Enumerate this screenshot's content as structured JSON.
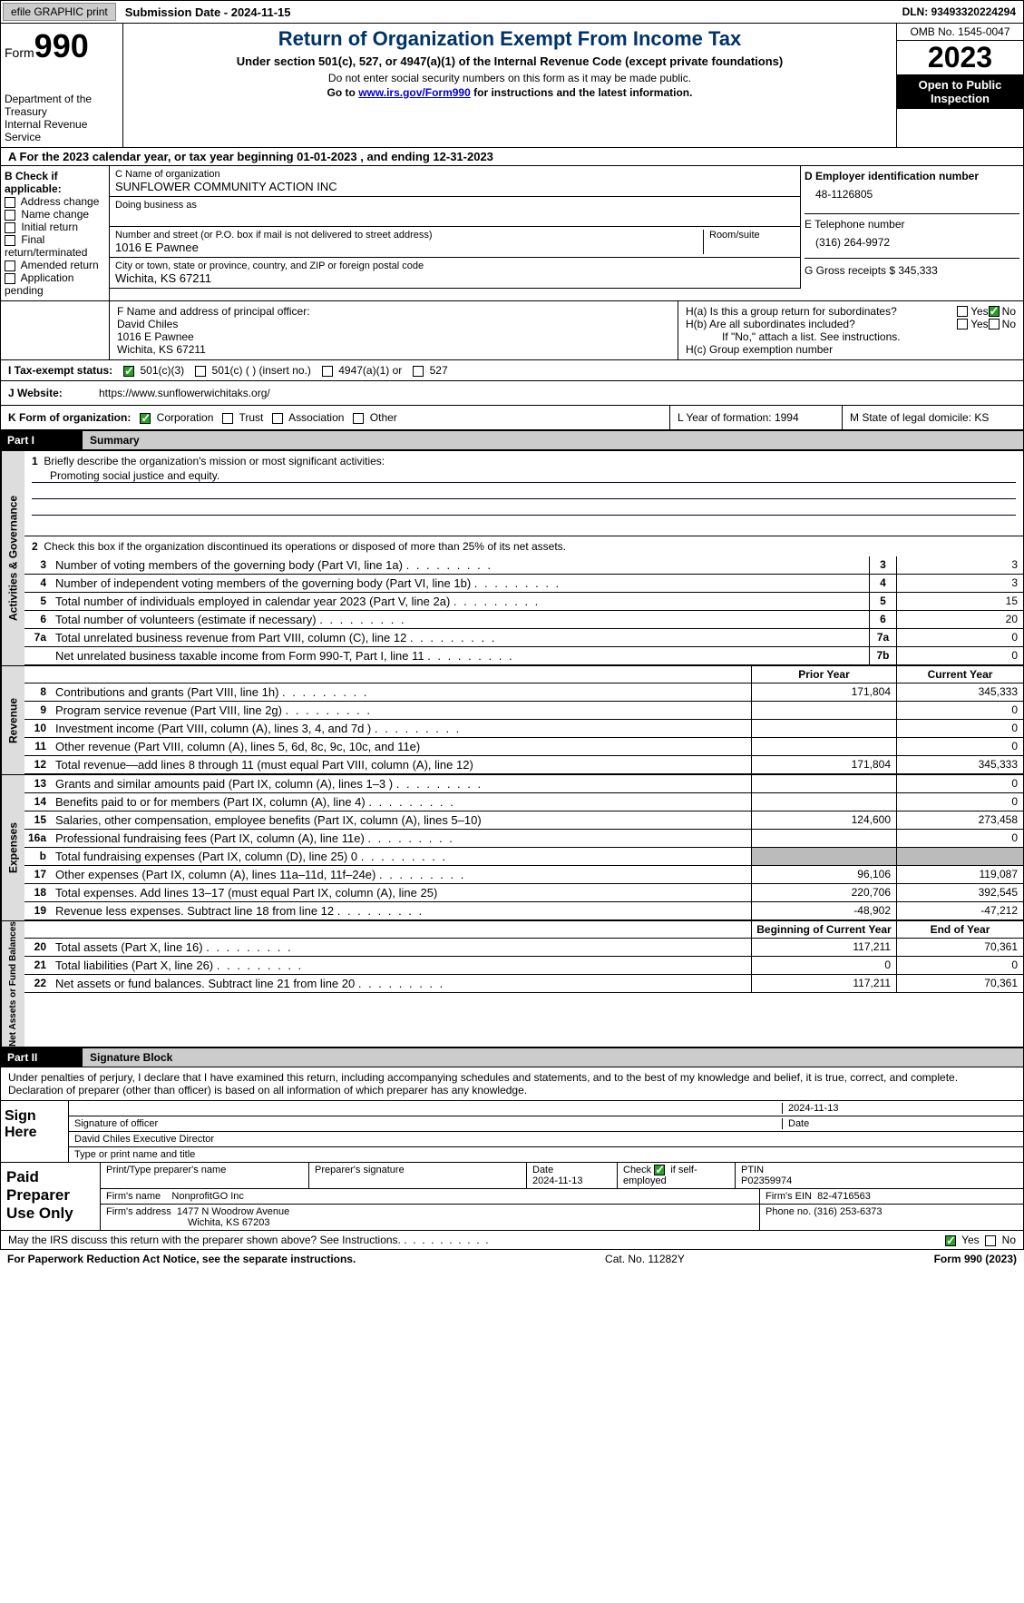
{
  "topbar": {
    "efile": "efile GRAPHIC print",
    "submission": "Submission Date - 2024-11-15",
    "dln": "DLN: 93493320224294"
  },
  "header": {
    "form_word": "Form",
    "form_num": "990",
    "dept": "Department of the Treasury",
    "irs": "Internal Revenue Service",
    "title": "Return of Organization Exempt From Income Tax",
    "sub1": "Under section 501(c), 527, or 4947(a)(1) of the Internal Revenue Code (except private foundations)",
    "sub2": "Do not enter social security numbers on this form as it may be made public.",
    "sub3_pre": "Go to ",
    "sub3_link": "www.irs.gov/Form990",
    "sub3_post": " for instructions and the latest information.",
    "omb": "OMB No. 1545-0047",
    "year": "2023",
    "open": "Open to Public Inspection"
  },
  "section_a": "A For the 2023 calendar year, or tax year beginning 01-01-2023   , and ending 12-31-2023",
  "box_b": {
    "hdr": "B Check if applicable:",
    "items": [
      "Address change",
      "Name change",
      "Initial return",
      "Final return/terminated",
      "Amended return",
      "Application pending"
    ]
  },
  "box_c": {
    "name_lbl": "C Name of organization",
    "name": "SUNFLOWER COMMUNITY ACTION INC",
    "dba_lbl": "Doing business as",
    "addr_lbl": "Number and street (or P.O. box if mail is not delivered to street address)",
    "room_lbl": "Room/suite",
    "addr": "1016 E Pawnee",
    "city_lbl": "City or town, state or province, country, and ZIP or foreign postal code",
    "city": "Wichita, KS  67211"
  },
  "box_d": {
    "ein_lbl": "D Employer identification number",
    "ein": "48-1126805",
    "tel_lbl": "E Telephone number",
    "tel": "(316) 264-9972",
    "gross_lbl": "G Gross receipts $ 345,333"
  },
  "box_f": {
    "lbl": "F  Name and address of principal officer:",
    "name": "David Chiles",
    "addr1": "1016 E Pawnee",
    "addr2": "Wichita, KS  67211"
  },
  "box_h": {
    "ha": "H(a)  Is this a group return for subordinates?",
    "hb": "H(b)  Are all subordinates included?",
    "hb_note": "If \"No,\" attach a list. See instructions.",
    "hc": "H(c)  Group exemption number",
    "yes": "Yes",
    "no": "No"
  },
  "row_i": {
    "lbl": "I   Tax-exempt status:",
    "o1": "501(c)(3)",
    "o2": "501(c) (  ) (insert no.)",
    "o3": "4947(a)(1) or",
    "o4": "527"
  },
  "row_j": {
    "lbl": "J   Website:",
    "val": "https://www.sunflowerwichitaks.org/"
  },
  "row_k": {
    "lbl": "K Form of organization:",
    "o1": "Corporation",
    "o2": "Trust",
    "o3": "Association",
    "o4": "Other",
    "l_lbl": "L Year of formation: 1994",
    "m_lbl": "M State of legal domicile: KS"
  },
  "part1": {
    "num": "Part I",
    "title": "Summary"
  },
  "vtabs": {
    "gov": "Activities & Governance",
    "rev": "Revenue",
    "exp": "Expenses",
    "net": "Net Assets or Fund Balances"
  },
  "summary": {
    "q1": "Briefly describe the organization's mission or most significant activities:",
    "q1a": "Promoting social justice and equity.",
    "q2": "Check this box      if the organization discontinued its operations or disposed of more than 25% of its net assets.",
    "rows_gov": [
      {
        "n": "3",
        "d": "Number of voting members of the governing body (Part VI, line 1a)",
        "box": "3",
        "v": "3"
      },
      {
        "n": "4",
        "d": "Number of independent voting members of the governing body (Part VI, line 1b)",
        "box": "4",
        "v": "3"
      },
      {
        "n": "5",
        "d": "Total number of individuals employed in calendar year 2023 (Part V, line 2a)",
        "box": "5",
        "v": "15"
      },
      {
        "n": "6",
        "d": "Total number of volunteers (estimate if necessary)",
        "box": "6",
        "v": "20"
      },
      {
        "n": "7a",
        "d": "Total unrelated business revenue from Part VIII, column (C), line 12",
        "box": "7a",
        "v": "0"
      },
      {
        "n": "",
        "d": "Net unrelated business taxable income from Form 990-T, Part I, line 11",
        "box": "7b",
        "v": "0"
      }
    ],
    "hdr_prior": "Prior Year",
    "hdr_curr": "Current Year",
    "rows_rev": [
      {
        "n": "8",
        "d": "Contributions and grants (Part VIII, line 1h)",
        "p": "171,804",
        "c": "345,333"
      },
      {
        "n": "9",
        "d": "Program service revenue (Part VIII, line 2g)",
        "p": "",
        "c": "0"
      },
      {
        "n": "10",
        "d": "Investment income (Part VIII, column (A), lines 3, 4, and 7d )",
        "p": "",
        "c": "0"
      },
      {
        "n": "11",
        "d": "Other revenue (Part VIII, column (A), lines 5, 6d, 8c, 9c, 10c, and 11e)",
        "p": "",
        "c": "0"
      },
      {
        "n": "12",
        "d": "Total revenue—add lines 8 through 11 (must equal Part VIII, column (A), line 12)",
        "p": "171,804",
        "c": "345,333"
      }
    ],
    "rows_exp": [
      {
        "n": "13",
        "d": "Grants and similar amounts paid (Part IX, column (A), lines 1–3 )",
        "p": "",
        "c": "0"
      },
      {
        "n": "14",
        "d": "Benefits paid to or for members (Part IX, column (A), line 4)",
        "p": "",
        "c": "0"
      },
      {
        "n": "15",
        "d": "Salaries, other compensation, employee benefits (Part IX, column (A), lines 5–10)",
        "p": "124,600",
        "c": "273,458"
      },
      {
        "n": "16a",
        "d": "Professional fundraising fees (Part IX, column (A), line 11e)",
        "p": "",
        "c": "0"
      },
      {
        "n": "b",
        "d": "Total fundraising expenses (Part IX, column (D), line 25) 0",
        "p": "gray",
        "c": "gray"
      },
      {
        "n": "17",
        "d": "Other expenses (Part IX, column (A), lines 11a–11d, 11f–24e)",
        "p": "96,106",
        "c": "119,087"
      },
      {
        "n": "18",
        "d": "Total expenses. Add lines 13–17 (must equal Part IX, column (A), line 25)",
        "p": "220,706",
        "c": "392,545"
      },
      {
        "n": "19",
        "d": "Revenue less expenses. Subtract line 18 from line 12",
        "p": "-48,902",
        "c": "-47,212"
      }
    ],
    "hdr_begin": "Beginning of Current Year",
    "hdr_end": "End of Year",
    "rows_net": [
      {
        "n": "20",
        "d": "Total assets (Part X, line 16)",
        "p": "117,211",
        "c": "70,361"
      },
      {
        "n": "21",
        "d": "Total liabilities (Part X, line 26)",
        "p": "0",
        "c": "0"
      },
      {
        "n": "22",
        "d": "Net assets or fund balances. Subtract line 21 from line 20",
        "p": "117,211",
        "c": "70,361"
      }
    ]
  },
  "part2": {
    "num": "Part II",
    "title": "Signature Block"
  },
  "sig": {
    "decl": "Under penalties of perjury, I declare that I have examined this return, including accompanying schedules and statements, and to the best of my knowledge and belief, it is true, correct, and complete. Declaration of preparer (other than officer) is based on all information of which preparer has any knowledge.",
    "sign_here": "Sign Here",
    "date": "2024-11-13",
    "sig_officer": "Signature of officer",
    "sig_date": "Date",
    "officer": "David Chiles  Executive Director",
    "type_name": "Type or print name and title"
  },
  "prep": {
    "lbl": "Paid Preparer Use Only",
    "print_lbl": "Print/Type preparer's name",
    "sig_lbl": "Preparer's signature",
    "date_lbl": "Date",
    "date": "2024-11-13",
    "check_lbl": "Check",
    "self_emp": "if self-employed",
    "ptin_lbl": "PTIN",
    "ptin": "P02359974",
    "firm_name_lbl": "Firm's name",
    "firm_name": "NonprofitGO Inc",
    "firm_ein_lbl": "Firm's EIN",
    "firm_ein": "82-4716563",
    "firm_addr_lbl": "Firm's address",
    "firm_addr1": "1477 N Woodrow Avenue",
    "firm_addr2": "Wichita, KS  67203",
    "phone_lbl": "Phone no.",
    "phone": "(316) 253-6373"
  },
  "footer": {
    "discuss": "May the IRS discuss this return with the preparer shown above? See Instructions.",
    "yes": "Yes",
    "no": "No",
    "paperwork": "For Paperwork Reduction Act Notice, see the separate instructions.",
    "cat": "Cat. No. 11282Y",
    "form": "Form 990 (2023)"
  }
}
